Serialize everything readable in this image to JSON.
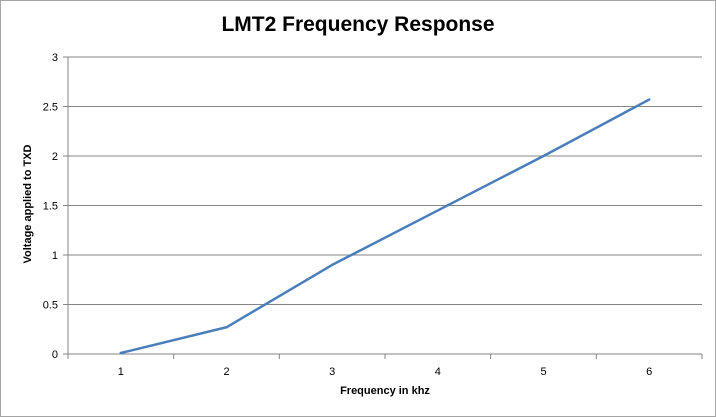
{
  "chart_data": {
    "type": "line",
    "title": "LMT2 Frequency Response",
    "xlabel": "Frequency in khz",
    "ylabel": "Voltage applied to TXD",
    "categories": [
      "1",
      "2",
      "3",
      "4",
      "5",
      "6"
    ],
    "series": [
      {
        "values": [
          0.01,
          0.27,
          0.9,
          1.45,
          2.0,
          2.57
        ],
        "color": "#4a7ebb"
      }
    ],
    "ylim": [
      0,
      3
    ],
    "yticks": [
      "0",
      "0.5",
      "1",
      "1.5",
      "2",
      "2.5",
      "3"
    ],
    "grid": true,
    "legend": "none"
  }
}
